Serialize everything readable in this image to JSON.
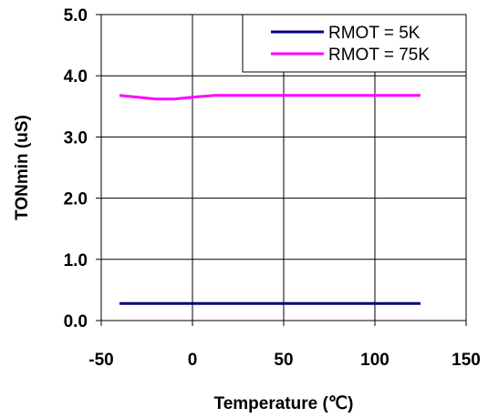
{
  "chart_data": {
    "type": "line",
    "title": "",
    "xlabel": "Temperature (℃)",
    "ylabel": "TONmin (uS)",
    "xlim": [
      -50,
      150
    ],
    "ylim": [
      0,
      5
    ],
    "x_ticks": [
      -50,
      0,
      50,
      100,
      150
    ],
    "x_tick_labels": [
      "-50",
      "0",
      "50",
      "100",
      "150"
    ],
    "y_ticks": [
      0,
      1,
      2,
      3,
      4,
      5
    ],
    "y_tick_labels": [
      "0.0",
      "1.0",
      "2.0",
      "3.0",
      "4.0",
      "5.0"
    ],
    "grid": true,
    "legend_position": "top-right",
    "series": [
      {
        "name": "RMOT = 5K",
        "color": "#000080",
        "x": [
          -40,
          -20,
          -10,
          0,
          12,
          25,
          50,
          75,
          100,
          125
        ],
        "y": [
          0.28,
          0.28,
          0.28,
          0.28,
          0.28,
          0.28,
          0.28,
          0.28,
          0.28,
          0.28
        ]
      },
      {
        "name": "RMOT = 75K",
        "color": "#ff00ff",
        "x": [
          -40,
          -20,
          -10,
          0,
          12,
          25,
          50,
          75,
          100,
          125
        ],
        "y": [
          3.68,
          3.62,
          3.62,
          3.65,
          3.68,
          3.68,
          3.68,
          3.68,
          3.68,
          3.68
        ]
      }
    ]
  }
}
